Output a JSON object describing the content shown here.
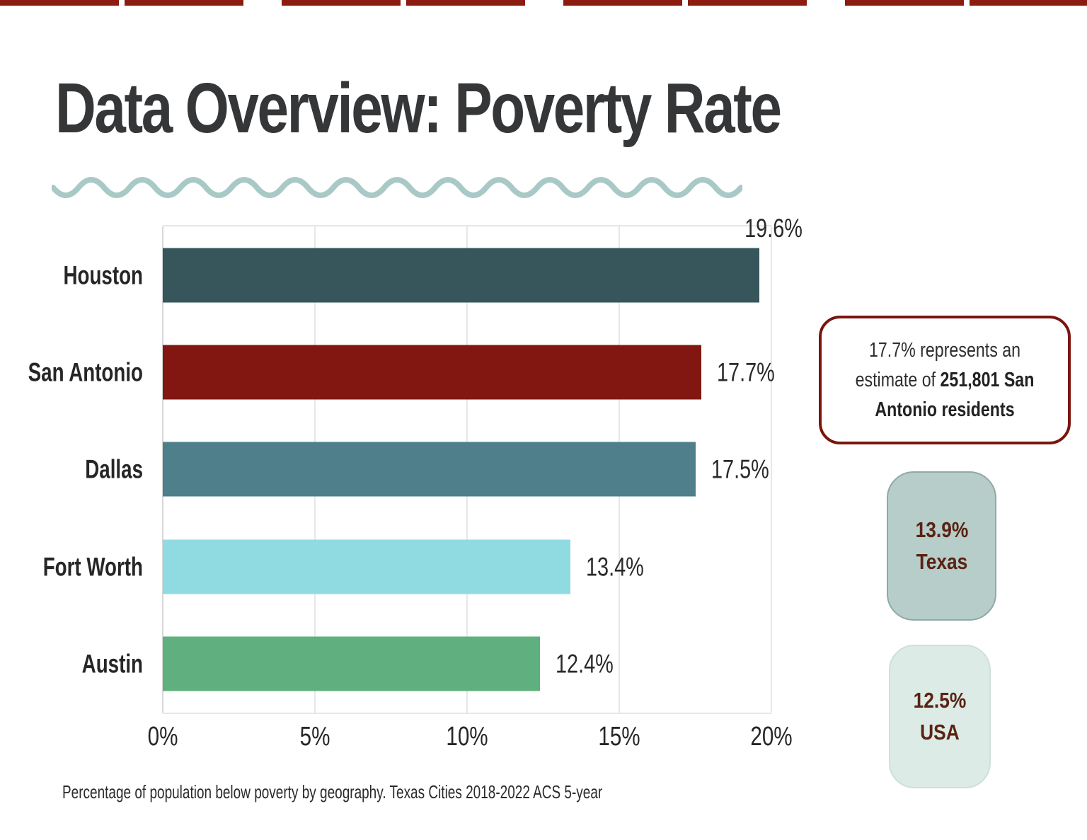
{
  "slide": {
    "title": "Data Overview: Poverty Rate",
    "footnote": "Percentage of population below poverty by geography. Texas Cities 2018-2022 ACS 5-year"
  },
  "callout": {
    "text_normal": "17.7% represents an estimate of ",
    "text_bold": "251,801 San Antonio residents"
  },
  "stat_boxes": [
    {
      "value": "13.9%",
      "label": "Texas",
      "fill": "#b7cdc9",
      "border": "#8fa9a6",
      "text_color": "#5a2313"
    },
    {
      "value": "12.5%",
      "label": "USA",
      "fill": "#dcebe6",
      "border": "#cde0da",
      "text_color": "#5a2313"
    }
  ],
  "chart_data": {
    "type": "bar",
    "orientation": "horizontal",
    "title": "",
    "xlabel": "",
    "ylabel": "",
    "categories": [
      "Houston",
      "San Antonio",
      "Dallas",
      "Fort Worth",
      "Austin"
    ],
    "values": [
      19.6,
      17.7,
      17.5,
      13.4,
      12.4
    ],
    "value_labels": [
      "19.6%",
      "17.7%",
      "17.5%",
      "13.4%",
      "12.4%"
    ],
    "bar_colors": [
      "#36565B",
      "#811710",
      "#4E7F8B",
      "#90DBE2",
      "#5FB07E"
    ],
    "value_label_positions": [
      "above",
      "right",
      "right",
      "right",
      "right"
    ],
    "xlim": [
      0,
      20
    ],
    "xticks": [
      0,
      5,
      10,
      15,
      20
    ],
    "xtick_labels": [
      "0%",
      "5%",
      "10%",
      "15%",
      "20%"
    ],
    "grid": true,
    "legend": "none"
  },
  "colors": {
    "top_border": "#8c1b10",
    "wave": "#a9c9c6",
    "title": "#353638",
    "text": "#262626",
    "gridline": "#e7e7e7",
    "callout_border": "#7a150e"
  }
}
